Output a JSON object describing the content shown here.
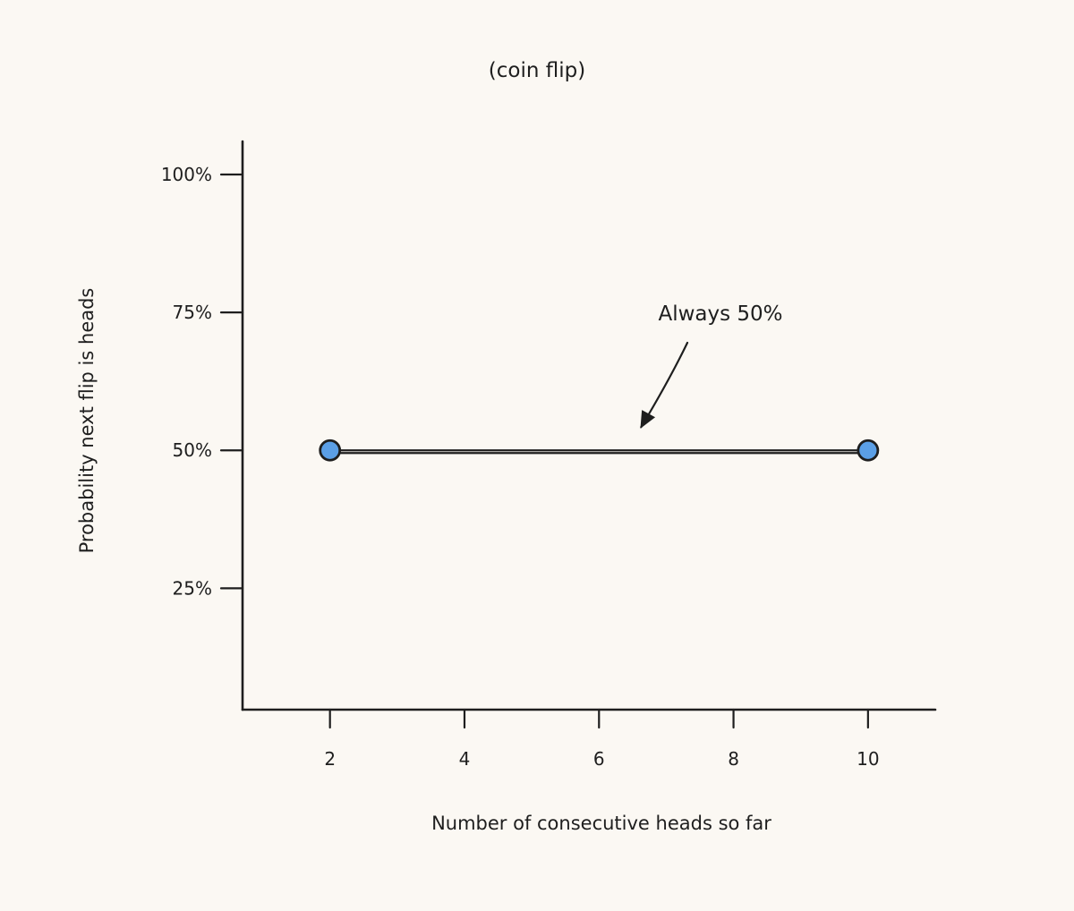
{
  "chart_data": {
    "type": "line",
    "title": "(coin flip)",
    "xlabel": "Number of consecutive heads so far",
    "ylabel": "Probability next flip is heads",
    "x_ticks": [
      2,
      4,
      6,
      8,
      10
    ],
    "x_tick_labels": [
      "2",
      "4",
      "6",
      "8",
      "10"
    ],
    "y_ticks": [
      25,
      50,
      75,
      100
    ],
    "y_tick_labels": [
      "25%",
      "50%",
      "75%",
      "100%"
    ],
    "xlim": [
      0.7,
      11
    ],
    "ylim": [
      3,
      106
    ],
    "grid": false,
    "series": [
      {
        "x": [
          2,
          10
        ],
        "y": [
          50,
          50
        ],
        "color": "#5b9fe6"
      }
    ],
    "annotation": {
      "text": "Always 50%",
      "x": 6.6,
      "y": 50
    }
  }
}
